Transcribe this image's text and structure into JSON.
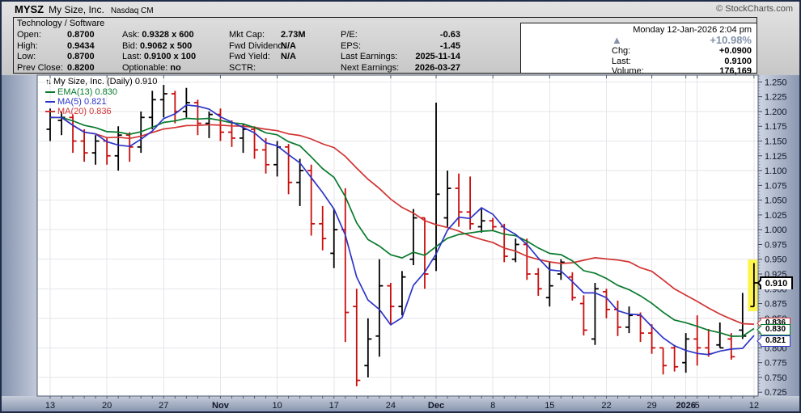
{
  "header": {
    "symbol": "MYSZ",
    "company": "My Size, Inc.",
    "exchange": "Nasdaq CM",
    "copyright": "© StockCharts.com",
    "sector": "Technology / Software",
    "quote": {
      "open_label": "Open:",
      "open": "0.8700",
      "high_label": "High:",
      "high": "0.9434",
      "low_label": "Low:",
      "low": "0.8700",
      "prev_close_label": "Prev Close:",
      "prev_close": "0.8200",
      "ask_label": "Ask:",
      "ask": "0.9328 x 600",
      "bid_label": "Bid:",
      "bid": "0.9062 x 500",
      "last_label": "Last:",
      "last": "0.9100 x 100",
      "optionable_label": "Optionable:",
      "optionable": "no",
      "mktcap_label": "Mkt Cap:",
      "mktcap": "2.73M",
      "fwd_div_label": "Fwd Dividend:",
      "fwd_div": "N/A",
      "fwd_yield_label": "Fwd Yield:",
      "fwd_yield": "N/A",
      "sctr_label": "SCTR:",
      "sctr": "",
      "pe_label": "P/E:",
      "pe": "-0.63",
      "eps_label": "EPS:",
      "eps": "-1.45",
      "last_earnings_label": "Last Earnings:",
      "last_earnings": "2025-11-14",
      "next_earnings_label": "Next Earnings:",
      "next_earnings": "2026-03-27"
    },
    "status": {
      "datetime": "Monday 12-Jan-2026 2:04 pm",
      "up_arrow": "▲",
      "pct_change": "+10.98%",
      "chg_label": "Chg:",
      "chg": "+0.0900",
      "last_label": "Last:",
      "last": "0.9100",
      "volume_label": "Volume:",
      "volume": "176,169"
    }
  },
  "chart": {
    "title": "My Size, Inc. (Daily) 0.910",
    "legend": [
      {
        "label": "EMA(13) 0.830",
        "color": "#087a2c"
      },
      {
        "label": "MA(5) 0.821",
        "color": "#2d35c8"
      },
      {
        "label": "MA(20) 0.836",
        "color": "#d23333"
      }
    ],
    "callouts": {
      "last": {
        "text": "0.910",
        "color": "#000000"
      },
      "ma20": {
        "text": "0.836",
        "color": "#d23333"
      },
      "ema13": {
        "text": "0.830",
        "color": "#087a2c"
      },
      "ma5": {
        "text": "0.821",
        "color": "#2d35c8"
      }
    }
  },
  "chart_data": {
    "type": "ohlc-bar",
    "title": "My Size, Inc. (Daily) 0.910",
    "ylim": [
      0.7185,
      1.2615
    ],
    "y_tick_step": 0.025,
    "grid_step": 0.05,
    "up_color": "#000000",
    "down_color": "#c90d0d",
    "grid_color": "#e5e6ea",
    "y_tick_labels": [
      "0.725",
      "0.750",
      "0.775",
      "0.800",
      "0.825",
      "0.850",
      "0.875",
      "0.900",
      "0.925",
      "0.950",
      "0.975",
      "1.000",
      "1.025",
      "1.050",
      "1.075",
      "1.100",
      "1.125",
      "1.150",
      "1.175",
      "1.200",
      "1.225",
      "1.250"
    ],
    "x_ticks": [
      {
        "i": 0,
        "label": "13",
        "bold": false
      },
      {
        "i": 5,
        "label": "20",
        "bold": false
      },
      {
        "i": 10,
        "label": "27",
        "bold": false
      },
      {
        "i": 15,
        "label": "Nov",
        "bold": true
      },
      {
        "i": 20,
        "label": "10",
        "bold": false
      },
      {
        "i": 25,
        "label": "17",
        "bold": false
      },
      {
        "i": 30,
        "label": "24",
        "bold": false
      },
      {
        "i": 34,
        "label": "Dec",
        "bold": true
      },
      {
        "i": 39,
        "label": "8",
        "bold": false
      },
      {
        "i": 44,
        "label": "15",
        "bold": false
      },
      {
        "i": 49,
        "label": "22",
        "bold": false
      },
      {
        "i": 53,
        "label": "29",
        "bold": false
      },
      {
        "i": 56,
        "label": "2026",
        "bold": true
      },
      {
        "i": 57,
        "label": "5",
        "bold": false
      },
      {
        "i": 62,
        "label": "12",
        "bold": false
      }
    ],
    "overlays": [
      {
        "name": "ma20",
        "kind": "sma",
        "period": 20,
        "color": "#d23333"
      },
      {
        "name": "ema13",
        "kind": "ema",
        "period": 13,
        "color": "#087a2c"
      },
      {
        "name": "ma5",
        "kind": "sma",
        "period": 5,
        "color": "#2d35c8"
      }
    ],
    "highlight": {
      "bar_index": 62,
      "price_top": 0.9494,
      "price_bottom": 0.862,
      "color": "#fef54a"
    },
    "bars": [
      {
        "d": "Oct 13",
        "o": 1.17,
        "h": 1.205,
        "l": 1.15,
        "c": 1.19
      },
      {
        "d": "Oct 14",
        "o": 1.185,
        "h": 1.2,
        "l": 1.16,
        "c": 1.19
      },
      {
        "d": "Oct 15",
        "o": 1.19,
        "h": 1.195,
        "l": 1.13,
        "c": 1.15
      },
      {
        "d": "Oct 16",
        "o": 1.15,
        "h": 1.17,
        "l": 1.115,
        "c": 1.13
      },
      {
        "d": "Oct 17",
        "o": 1.13,
        "h": 1.16,
        "l": 1.11,
        "c": 1.15
      },
      {
        "d": "Oct 20",
        "o": 1.15,
        "h": 1.155,
        "l": 1.11,
        "c": 1.125
      },
      {
        "d": "Oct 21",
        "o": 1.125,
        "h": 1.175,
        "l": 1.1,
        "c": 1.16
      },
      {
        "d": "Oct 22",
        "o": 1.16,
        "h": 1.165,
        "l": 1.115,
        "c": 1.14
      },
      {
        "d": "Oct 23",
        "o": 1.14,
        "h": 1.2,
        "l": 1.13,
        "c": 1.19
      },
      {
        "d": "Oct 24",
        "o": 1.19,
        "h": 1.235,
        "l": 1.17,
        "c": 1.22
      },
      {
        "d": "Oct 27",
        "o": 1.22,
        "h": 1.245,
        "l": 1.19,
        "c": 1.23
      },
      {
        "d": "Oct 28",
        "o": 1.23,
        "h": 1.235,
        "l": 1.18,
        "c": 1.2
      },
      {
        "d": "Oct 29",
        "o": 1.2,
        "h": 1.24,
        "l": 1.19,
        "c": 1.215
      },
      {
        "d": "Oct 30",
        "o": 1.215,
        "h": 1.22,
        "l": 1.16,
        "c": 1.18
      },
      {
        "d": "Oct 31",
        "o": 1.18,
        "h": 1.2,
        "l": 1.155,
        "c": 1.195
      },
      {
        "d": "Nov 3",
        "o": 1.195,
        "h": 1.205,
        "l": 1.15,
        "c": 1.165
      },
      {
        "d": "Nov 4",
        "o": 1.165,
        "h": 1.185,
        "l": 1.14,
        "c": 1.155
      },
      {
        "d": "Nov 5",
        "o": 1.155,
        "h": 1.18,
        "l": 1.13,
        "c": 1.17
      },
      {
        "d": "Nov 6",
        "o": 1.17,
        "h": 1.175,
        "l": 1.12,
        "c": 1.135
      },
      {
        "d": "Nov 7",
        "o": 1.135,
        "h": 1.155,
        "l": 1.095,
        "c": 1.11
      },
      {
        "d": "Nov 10",
        "o": 1.11,
        "h": 1.15,
        "l": 1.09,
        "c": 1.14
      },
      {
        "d": "Nov 11",
        "o": 1.14,
        "h": 1.145,
        "l": 1.06,
        "c": 1.08
      },
      {
        "d": "Nov 12",
        "o": 1.08,
        "h": 1.12,
        "l": 1.04,
        "c": 1.1
      },
      {
        "d": "Nov 13",
        "o": 1.1,
        "h": 1.11,
        "l": 0.99,
        "c": 1.01
      },
      {
        "d": "Nov 14",
        "o": 1.01,
        "h": 1.04,
        "l": 0.965,
        "c": 0.985
      },
      {
        "d": "Nov 17",
        "o": 0.96,
        "h": 1.035,
        "l": 0.935,
        "c": 1.0
      },
      {
        "d": "Nov 18",
        "o": 1.0,
        "h": 1.07,
        "l": 0.81,
        "c": 0.86
      },
      {
        "d": "Nov 19",
        "o": 0.87,
        "h": 0.9,
        "l": 0.735,
        "c": 0.745
      },
      {
        "d": "Nov 20",
        "o": 0.77,
        "h": 0.85,
        "l": 0.75,
        "c": 0.815
      },
      {
        "d": "Nov 21",
        "o": 0.82,
        "h": 0.95,
        "l": 0.785,
        "c": 0.905
      },
      {
        "d": "Nov 24",
        "o": 0.905,
        "h": 0.91,
        "l": 0.84,
        "c": 0.87
      },
      {
        "d": "Nov 25",
        "o": 0.87,
        "h": 0.93,
        "l": 0.855,
        "c": 0.92
      },
      {
        "d": "Nov 26",
        "o": 0.95,
        "h": 1.035,
        "l": 0.94,
        "c": 1.02
      },
      {
        "d": "Nov 28",
        "o": 1.02,
        "h": 1.02,
        "l": 0.9,
        "c": 0.925
      },
      {
        "d": "Dec 1",
        "o": 0.95,
        "h": 1.215,
        "l": 0.93,
        "c": 1.06
      },
      {
        "d": "Dec 2",
        "o": 1.02,
        "h": 1.1,
        "l": 1.005,
        "c": 1.07
      },
      {
        "d": "Dec 3",
        "o": 1.07,
        "h": 1.095,
        "l": 1.005,
        "c": 1.03
      },
      {
        "d": "Dec 4",
        "o": 1.03,
        "h": 1.09,
        "l": 1.0,
        "c": 1.01
      },
      {
        "d": "Dec 5",
        "o": 1.005,
        "h": 1.035,
        "l": 0.995,
        "c": 1.015
      },
      {
        "d": "Dec 8",
        "o": 1.015,
        "h": 1.02,
        "l": 0.998,
        "c": 1.005
      },
      {
        "d": "Dec 9",
        "o": 1.005,
        "h": 1.01,
        "l": 0.945,
        "c": 0.955
      },
      {
        "d": "Dec 10",
        "o": 0.95,
        "h": 0.985,
        "l": 0.945,
        "c": 0.975
      },
      {
        "d": "Dec 11",
        "o": 0.975,
        "h": 0.985,
        "l": 0.915,
        "c": 0.925
      },
      {
        "d": "Dec 12",
        "o": 0.925,
        "h": 0.935,
        "l": 0.888,
        "c": 0.9
      },
      {
        "d": "Dec 15",
        "o": 0.885,
        "h": 0.945,
        "l": 0.87,
        "c": 0.905
      },
      {
        "d": "Dec 16",
        "o": 0.925,
        "h": 0.95,
        "l": 0.915,
        "c": 0.945
      },
      {
        "d": "Dec 17",
        "o": 0.92,
        "h": 0.928,
        "l": 0.88,
        "c": 0.885
      },
      {
        "d": "Dec 18",
        "o": 0.875,
        "h": 0.889,
        "l": 0.821,
        "c": 0.83
      },
      {
        "d": "Dec 19",
        "o": 0.815,
        "h": 0.91,
        "l": 0.805,
        "c": 0.9
      },
      {
        "d": "Dec 22",
        "o": 0.895,
        "h": 0.9,
        "l": 0.85,
        "c": 0.865
      },
      {
        "d": "Dec 23",
        "o": 0.865,
        "h": 0.88,
        "l": 0.82,
        "c": 0.835
      },
      {
        "d": "Dec 24",
        "o": 0.835,
        "h": 0.87,
        "l": 0.825,
        "c": 0.855
      },
      {
        "d": "Dec 26",
        "o": 0.855,
        "h": 0.86,
        "l": 0.81,
        "c": 0.825
      },
      {
        "d": "Dec 29",
        "o": 0.825,
        "h": 0.84,
        "l": 0.79,
        "c": 0.8
      },
      {
        "d": "Dec 30",
        "o": 0.8,
        "h": 0.8,
        "l": 0.755,
        "c": 0.77
      },
      {
        "d": "Dec 31",
        "o": 0.8,
        "h": 0.805,
        "l": 0.76,
        "c": 0.768
      },
      {
        "d": "Jan 2",
        "o": 0.775,
        "h": 0.825,
        "l": 0.758,
        "c": 0.815
      },
      {
        "d": "Jan 5",
        "o": 0.815,
        "h": 0.855,
        "l": 0.77,
        "c": 0.8
      },
      {
        "d": "Jan 6",
        "o": 0.8,
        "h": 0.832,
        "l": 0.785,
        "c": 0.79
      },
      {
        "d": "Jan 7",
        "o": 0.805,
        "h": 0.843,
        "l": 0.8,
        "c": 0.8
      },
      {
        "d": "Jan 8",
        "o": 0.815,
        "h": 0.825,
        "l": 0.78,
        "c": 0.785
      },
      {
        "d": "Jan 9",
        "o": 0.83,
        "h": 0.893,
        "l": 0.815,
        "c": 0.82
      },
      {
        "d": "Jan 12",
        "o": 0.87,
        "h": 0.9434,
        "l": 0.87,
        "c": 0.91
      }
    ]
  }
}
